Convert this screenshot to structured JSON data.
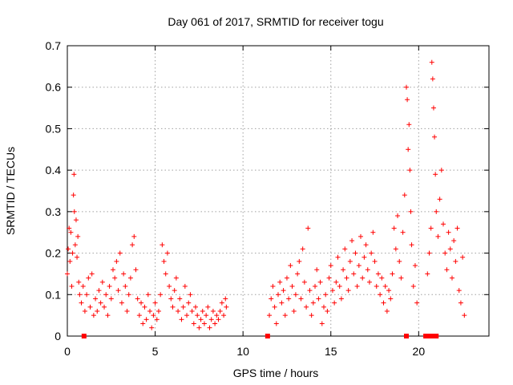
{
  "chart_data": {
    "type": "scatter",
    "title": "Day 061 of 2017, SRMTID for receiver togu",
    "xlabel": "GPS time / hours",
    "ylabel": "SRMTID / TECUs",
    "xlim": [
      0,
      24
    ],
    "ylim": [
      0,
      0.7
    ],
    "x_ticks": [
      0,
      5,
      10,
      15,
      20
    ],
    "y_ticks": [
      0,
      0.1,
      0.2,
      0.3,
      0.4,
      0.5,
      0.6,
      0.7
    ],
    "x_tick_labels": [
      "0",
      "5",
      "10",
      "15",
      "20"
    ],
    "y_tick_labels": [
      "0",
      "0.1",
      "0.2",
      "0.3",
      "0.4",
      "0.5",
      "0.6",
      "0.7"
    ],
    "grid": true,
    "marker": "plus",
    "color": "#ff0000",
    "series": [
      {
        "name": "SRMTID",
        "points": [
          [
            0.0,
            0.15
          ],
          [
            0.05,
            0.21
          ],
          [
            0.1,
            0.26
          ],
          [
            0.15,
            0.18
          ],
          [
            0.2,
            0.25
          ],
          [
            0.25,
            0.12
          ],
          [
            0.3,
            0.2
          ],
          [
            0.35,
            0.34
          ],
          [
            0.38,
            0.39
          ],
          [
            0.4,
            0.3
          ],
          [
            0.45,
            0.22
          ],
          [
            0.5,
            0.28
          ],
          [
            0.55,
            0.19
          ],
          [
            0.6,
            0.24
          ],
          [
            0.65,
            0.13
          ],
          [
            0.7,
            0.1
          ],
          [
            0.8,
            0.08
          ],
          [
            0.9,
            0.12
          ],
          [
            1.0,
            0.06
          ],
          [
            1.1,
            0.1
          ],
          [
            1.2,
            0.14
          ],
          [
            1.3,
            0.07
          ],
          [
            1.4,
            0.15
          ],
          [
            1.5,
            0.05
          ],
          [
            1.6,
            0.09
          ],
          [
            1.7,
            0.06
          ],
          [
            1.8,
            0.11
          ],
          [
            1.9,
            0.08
          ],
          [
            2.0,
            0.13
          ],
          [
            2.1,
            0.07
          ],
          [
            2.2,
            0.1
          ],
          [
            2.3,
            0.05
          ],
          [
            2.4,
            0.12
          ],
          [
            2.5,
            0.09
          ],
          [
            2.6,
            0.16
          ],
          [
            2.7,
            0.14
          ],
          [
            2.8,
            0.18
          ],
          [
            2.9,
            0.11
          ],
          [
            3.0,
            0.2
          ],
          [
            3.1,
            0.08
          ],
          [
            3.2,
            0.15
          ],
          [
            3.3,
            0.12
          ],
          [
            3.4,
            0.06
          ],
          [
            3.5,
            0.1
          ],
          [
            3.6,
            0.14
          ],
          [
            3.7,
            0.22
          ],
          [
            3.8,
            0.24
          ],
          [
            3.9,
            0.16
          ],
          [
            4.0,
            0.09
          ],
          [
            4.1,
            0.05
          ],
          [
            4.2,
            0.08
          ],
          [
            4.3,
            0.03
          ],
          [
            4.4,
            0.07
          ],
          [
            4.5,
            0.04
          ],
          [
            4.6,
            0.1
          ],
          [
            4.7,
            0.06
          ],
          [
            4.8,
            0.02
          ],
          [
            4.9,
            0.05
          ],
          [
            5.0,
            0.08
          ],
          [
            5.1,
            0.04
          ],
          [
            5.2,
            0.06
          ],
          [
            5.3,
            0.1
          ],
          [
            5.4,
            0.22
          ],
          [
            5.5,
            0.18
          ],
          [
            5.6,
            0.15
          ],
          [
            5.7,
            0.2
          ],
          [
            5.8,
            0.12
          ],
          [
            5.9,
            0.09
          ],
          [
            6.0,
            0.07
          ],
          [
            6.1,
            0.11
          ],
          [
            6.2,
            0.14
          ],
          [
            6.3,
            0.06
          ],
          [
            6.4,
            0.09
          ],
          [
            6.5,
            0.04
          ],
          [
            6.6,
            0.07
          ],
          [
            6.7,
            0.12
          ],
          [
            6.8,
            0.05
          ],
          [
            6.9,
            0.08
          ],
          [
            7.0,
            0.1
          ],
          [
            7.1,
            0.06
          ],
          [
            7.2,
            0.03
          ],
          [
            7.3,
            0.07
          ],
          [
            7.4,
            0.05
          ],
          [
            7.5,
            0.02
          ],
          [
            7.6,
            0.04
          ],
          [
            7.7,
            0.06
          ],
          [
            7.8,
            0.03
          ],
          [
            7.9,
            0.05
          ],
          [
            8.0,
            0.07
          ],
          [
            8.1,
            0.02
          ],
          [
            8.2,
            0.04
          ],
          [
            8.3,
            0.06
          ],
          [
            8.4,
            0.03
          ],
          [
            8.5,
            0.05
          ],
          [
            8.6,
            0.04
          ],
          [
            8.7,
            0.06
          ],
          [
            8.8,
            0.08
          ],
          [
            8.9,
            0.05
          ],
          [
            9.0,
            0.09
          ],
          [
            9.05,
            0.07
          ],
          [
            11.5,
            0.05
          ],
          [
            11.6,
            0.09
          ],
          [
            11.7,
            0.12
          ],
          [
            11.8,
            0.07
          ],
          [
            11.9,
            0.03
          ],
          [
            12.0,
            0.1
          ],
          [
            12.1,
            0.13
          ],
          [
            12.2,
            0.08
          ],
          [
            12.3,
            0.11
          ],
          [
            12.4,
            0.05
          ],
          [
            12.5,
            0.14
          ],
          [
            12.6,
            0.09
          ],
          [
            12.7,
            0.17
          ],
          [
            12.8,
            0.12
          ],
          [
            12.9,
            0.06
          ],
          [
            13.0,
            0.1
          ],
          [
            13.1,
            0.15
          ],
          [
            13.2,
            0.18
          ],
          [
            13.3,
            0.09
          ],
          [
            13.4,
            0.21
          ],
          [
            13.5,
            0.13
          ],
          [
            13.6,
            0.07
          ],
          [
            13.7,
            0.26
          ],
          [
            13.8,
            0.11
          ],
          [
            13.9,
            0.05
          ],
          [
            14.0,
            0.08
          ],
          [
            14.1,
            0.12
          ],
          [
            14.2,
            0.16
          ],
          [
            14.3,
            0.09
          ],
          [
            14.4,
            0.13
          ],
          [
            14.5,
            0.03
          ],
          [
            14.6,
            0.07
          ],
          [
            14.7,
            0.1
          ],
          [
            14.8,
            0.06
          ],
          [
            14.9,
            0.14
          ],
          [
            15.0,
            0.17
          ],
          [
            15.1,
            0.11
          ],
          [
            15.2,
            0.08
          ],
          [
            15.3,
            0.13
          ],
          [
            15.4,
            0.19
          ],
          [
            15.5,
            0.12
          ],
          [
            15.6,
            0.09
          ],
          [
            15.7,
            0.16
          ],
          [
            15.8,
            0.21
          ],
          [
            15.9,
            0.14
          ],
          [
            16.0,
            0.11
          ],
          [
            16.1,
            0.18
          ],
          [
            16.2,
            0.23
          ],
          [
            16.3,
            0.15
          ],
          [
            16.4,
            0.2
          ],
          [
            16.5,
            0.12
          ],
          [
            16.6,
            0.17
          ],
          [
            16.7,
            0.24
          ],
          [
            16.8,
            0.14
          ],
          [
            16.9,
            0.19
          ],
          [
            17.0,
            0.22
          ],
          [
            17.1,
            0.16
          ],
          [
            17.2,
            0.13
          ],
          [
            17.3,
            0.2
          ],
          [
            17.4,
            0.25
          ],
          [
            17.5,
            0.18
          ],
          [
            17.6,
            0.12
          ],
          [
            17.7,
            0.15
          ],
          [
            17.8,
            0.1
          ],
          [
            17.9,
            0.14
          ],
          [
            18.0,
            0.08
          ],
          [
            18.1,
            0.12
          ],
          [
            18.2,
            0.06
          ],
          [
            18.3,
            0.11
          ],
          [
            18.4,
            0.09
          ],
          [
            18.5,
            0.15
          ],
          [
            18.6,
            0.26
          ],
          [
            18.7,
            0.21
          ],
          [
            18.8,
            0.29
          ],
          [
            18.9,
            0.18
          ],
          [
            19.0,
            0.14
          ],
          [
            19.1,
            0.25
          ],
          [
            19.2,
            0.34
          ],
          [
            19.3,
            0.6
          ],
          [
            19.35,
            0.57
          ],
          [
            19.4,
            0.45
          ],
          [
            19.45,
            0.51
          ],
          [
            19.5,
            0.4
          ],
          [
            19.55,
            0.3
          ],
          [
            19.6,
            0.22
          ],
          [
            19.7,
            0.12
          ],
          [
            19.8,
            0.17
          ],
          [
            19.9,
            0.08
          ],
          [
            20.5,
            0.15
          ],
          [
            20.6,
            0.2
          ],
          [
            20.7,
            0.26
          ],
          [
            20.75,
            0.66
          ],
          [
            20.8,
            0.62
          ],
          [
            20.85,
            0.55
          ],
          [
            20.9,
            0.48
          ],
          [
            20.95,
            0.39
          ],
          [
            21.0,
            0.3
          ],
          [
            21.1,
            0.24
          ],
          [
            21.2,
            0.33
          ],
          [
            21.3,
            0.4
          ],
          [
            21.4,
            0.27
          ],
          [
            21.5,
            0.2
          ],
          [
            21.6,
            0.16
          ],
          [
            21.7,
            0.25
          ],
          [
            21.8,
            0.21
          ],
          [
            21.9,
            0.14
          ],
          [
            22.0,
            0.23
          ],
          [
            22.1,
            0.18
          ],
          [
            22.2,
            0.26
          ],
          [
            22.3,
            0.11
          ],
          [
            22.4,
            0.08
          ],
          [
            22.5,
            0.19
          ],
          [
            22.6,
            0.05
          ]
        ]
      }
    ],
    "zero_markers": [
      0.95,
      11.4,
      19.3,
      20.4,
      20.55,
      20.7,
      20.85,
      21.0
    ]
  }
}
